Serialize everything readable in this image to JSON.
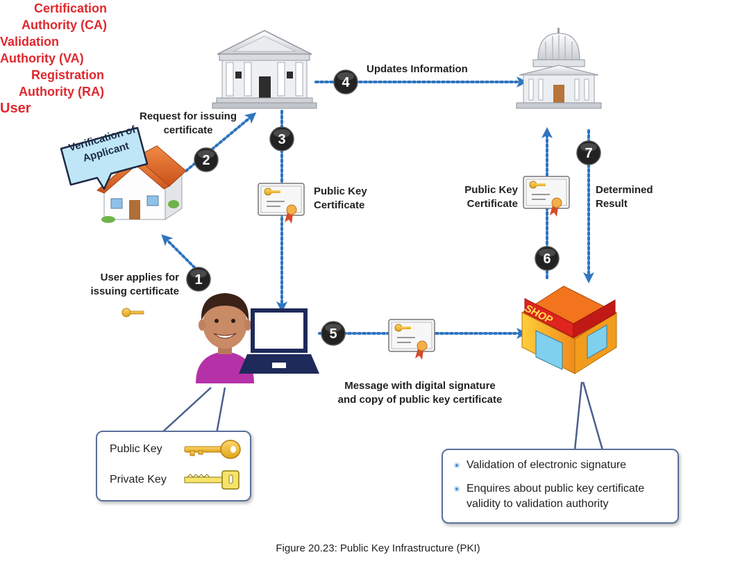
{
  "ca": {
    "line1": "Certification",
    "line2": "Authority (CA)"
  },
  "va": {
    "line1": "Validation",
    "line2": "Authority (VA)"
  },
  "ra": {
    "line1": "Registration",
    "line2": "Authority (RA)"
  },
  "user_label": "User",
  "bubble": {
    "line1": "Verification of",
    "line2": "Applicant"
  },
  "steps": {
    "s1": {
      "number": "1",
      "line1": "User applies for",
      "line2": "issuing certificate"
    },
    "s2": {
      "number": "2",
      "line1": "Request for issuing",
      "line2": "certificate"
    },
    "s3": {
      "number": "3",
      "line1": "Public Key",
      "line2": "Certificate"
    },
    "s4": {
      "number": "4",
      "text": "Updates Information"
    },
    "s5": {
      "number": "5",
      "line1": "Message with digital signature",
      "line2": "and copy of public key certificate"
    },
    "s6": {
      "number": "6",
      "line1": "Public Key",
      "line2": "Certificate"
    },
    "s7": {
      "number": "7",
      "line1": "Determined",
      "line2": "Result"
    }
  },
  "shop_sign": "SHOP",
  "keys_box": {
    "public": "Public Key",
    "private": "Private Key"
  },
  "shop_box": {
    "item1": "Validation of electronic signature",
    "item2_line1": "Enquires about public key certificate",
    "item2_line2": "validity to validation authority"
  },
  "caption": "Figure 20.23: Public Key Infrastructure (PKI)",
  "colors": {
    "accent_red": "#e0282e",
    "arrow_blue": "#2f74c0",
    "step_badge": "#222222"
  }
}
